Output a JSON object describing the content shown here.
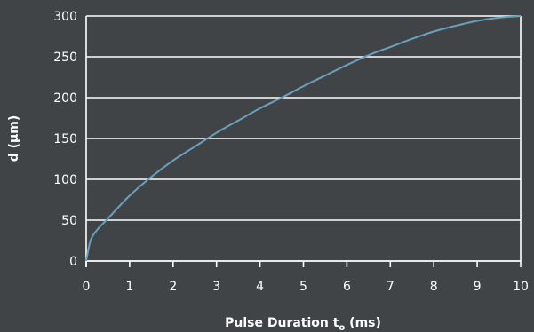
{
  "chart_data": {
    "type": "line",
    "title": "",
    "xlabel": "Pulse Duration t",
    "xlabel_subscript": "o",
    "xlabel_unit": " (ms)",
    "ylabel": "d (µm)",
    "xlim": [
      0,
      10
    ],
    "ylim": [
      0,
      300
    ],
    "xticks": [
      "0",
      "1",
      "2",
      "3",
      "4",
      "5",
      "6",
      "7",
      "8",
      "9",
      "10"
    ],
    "yticks": [
      "0",
      "50",
      "100",
      "150",
      "200",
      "250",
      "300"
    ],
    "grid": "horizontal",
    "colors": {
      "background": "#414446",
      "plot_background": "#414446",
      "grid": "#ffffff",
      "line": "#6a9fbe",
      "text": "#ffffff"
    },
    "series": [
      {
        "x": [
          0,
          0.1,
          0.25,
          0.5,
          1,
          1.5,
          2,
          2.5,
          3,
          3.5,
          4,
          4.5,
          5,
          5.5,
          6,
          6.5,
          7,
          7.5,
          8,
          8.5,
          9,
          9.5,
          10
        ],
        "values": [
          0,
          25,
          38,
          52,
          80,
          103,
          123,
          140,
          157,
          172,
          187,
          200,
          214,
          227,
          240,
          252,
          262,
          272,
          281,
          288,
          294,
          298,
          300
        ]
      }
    ]
  }
}
